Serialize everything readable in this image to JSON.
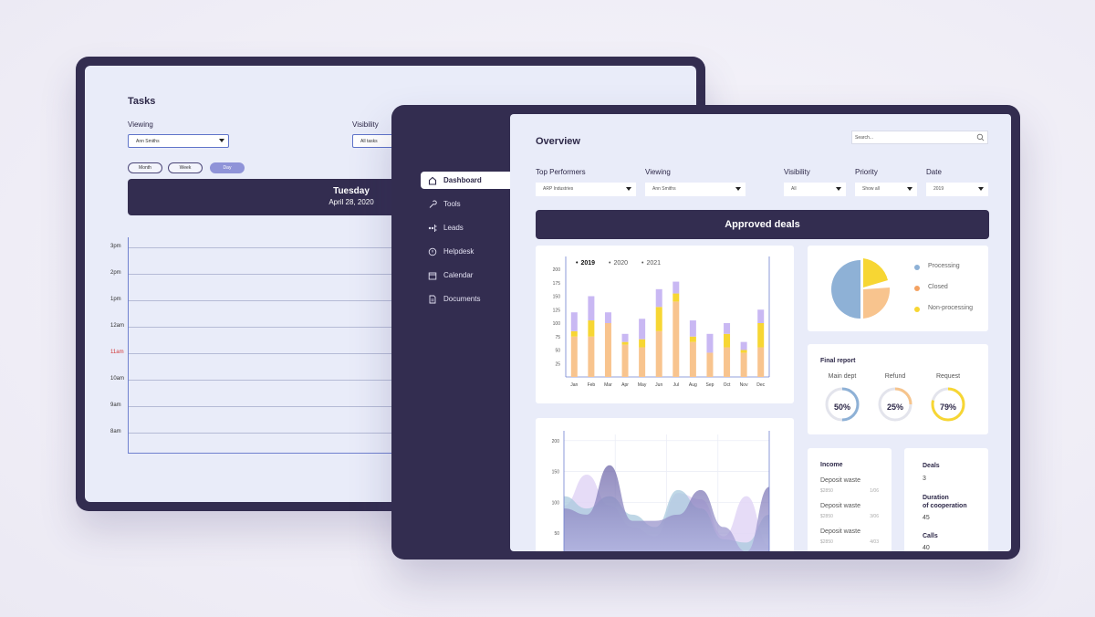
{
  "tasks": {
    "title": "Tasks",
    "viewing_label": "Viewing",
    "viewing_value": "Ann Smiths",
    "visibility_label": "Visibility",
    "visibility_value": "All tasks",
    "ranges": [
      "Month",
      "Week",
      "Day"
    ],
    "active_range": "Day",
    "day_name": "Tuesday",
    "date": "April 28, 2020",
    "hours": [
      "3pm",
      "2pm",
      "1pm",
      "12am",
      "11am",
      "10am",
      "9am",
      "8am"
    ],
    "current_hour": "11am",
    "colors": {
      "current_hour": "#d23a3a"
    }
  },
  "nav": {
    "items": [
      {
        "label": "Dashboard",
        "icon": "home-icon"
      },
      {
        "label": "Tools",
        "icon": "wrench-icon"
      },
      {
        "label": "Leads",
        "icon": "leads-icon"
      },
      {
        "label": "Helpdesk",
        "icon": "helpdesk-icon"
      },
      {
        "label": "Calendar",
        "icon": "calendar-icon"
      },
      {
        "label": "Documents",
        "icon": "document-icon"
      }
    ],
    "active": "Dashboard"
  },
  "overview": {
    "title": "Overview",
    "search_placeholder": "Search...",
    "filters": {
      "top_performers": {
        "label": "Top Performers",
        "value": "ARP Industries"
      },
      "viewing": {
        "label": "Viewing",
        "value": "Ann Smiths"
      },
      "visibility": {
        "label": "Visibility",
        "value": "All"
      },
      "priority": {
        "label": "Priority",
        "value": "Show all"
      },
      "date": {
        "label": "Date",
        "value": "2019"
      }
    },
    "banner": "Approved deals",
    "pie_legend": [
      {
        "label": "Processing",
        "color": "#8eb1d6"
      },
      {
        "label": "Closed",
        "color": "#f4a261"
      },
      {
        "label": "Non-processing",
        "color": "#f7d633"
      }
    ],
    "final_report": {
      "title": "Final report",
      "items": [
        {
          "label": "Main dept",
          "value": "50%",
          "pct": 50,
          "color": "#8eb1d6"
        },
        {
          "label": "Refund",
          "value": "25%",
          "pct": 25,
          "color": "#f6c48c"
        },
        {
          "label": "Request",
          "value": "79%",
          "pct": 79,
          "color": "#f7d633"
        }
      ]
    },
    "income": {
      "title": "Income",
      "items": [
        {
          "label": "Deposit waste",
          "amount": "$2850",
          "date": "1/06"
        },
        {
          "label": "Deposit waste",
          "amount": "$2850",
          "date": "3/06"
        },
        {
          "label": "Deposit waste",
          "amount": "$2850",
          "date": "4/03"
        }
      ]
    },
    "deals": {
      "deals_label": "Deals",
      "deals_value": "3",
      "duration_label_1": "Duration",
      "duration_label_2": "of cooperation",
      "duration_value": "45",
      "calls_label": "Calls",
      "calls_value": "40"
    }
  },
  "chart_data": [
    {
      "type": "bar",
      "stacked": true,
      "legend": [
        "2019",
        "2020",
        "2021"
      ],
      "selected_legend": "2019",
      "categories": [
        "Jan",
        "Feb",
        "Mar",
        "Apr",
        "May",
        "Jun",
        "Jul",
        "Aug",
        "Sep",
        "Oct",
        "Nov",
        "Dec"
      ],
      "series": [
        {
          "color": "#f8c48e",
          "values": [
            75,
            75,
            100,
            60,
            55,
            85,
            140,
            65,
            45,
            55,
            45,
            55
          ]
        },
        {
          "color": "#f7d633",
          "values": [
            10,
            30,
            0,
            5,
            15,
            45,
            15,
            10,
            0,
            25,
            5,
            45
          ]
        },
        {
          "color": "#c9b8f3",
          "values": [
            35,
            45,
            20,
            15,
            38,
            33,
            22,
            30,
            35,
            20,
            15,
            25
          ]
        }
      ],
      "yticks": [
        25,
        50,
        75,
        100,
        125,
        150,
        175,
        200
      ],
      "ylim": [
        0,
        200
      ]
    },
    {
      "type": "area",
      "yticks": [
        50,
        100,
        150,
        200
      ],
      "ylim": [
        0,
        200
      ],
      "series": [
        {
          "color": "#e2d6f6",
          "values": [
            95,
            145,
            95,
            60,
            45,
            115,
            105,
            45,
            110,
            30
          ]
        },
        {
          "color": "#a9c9dd",
          "values": [
            110,
            90,
            110,
            80,
            60,
            120,
            90,
            40,
            35,
            80
          ]
        },
        {
          "color": "#7f74b8",
          "values": [
            90,
            80,
            160,
            70,
            70,
            80,
            120,
            60,
            20,
            125
          ]
        }
      ]
    }
  ]
}
